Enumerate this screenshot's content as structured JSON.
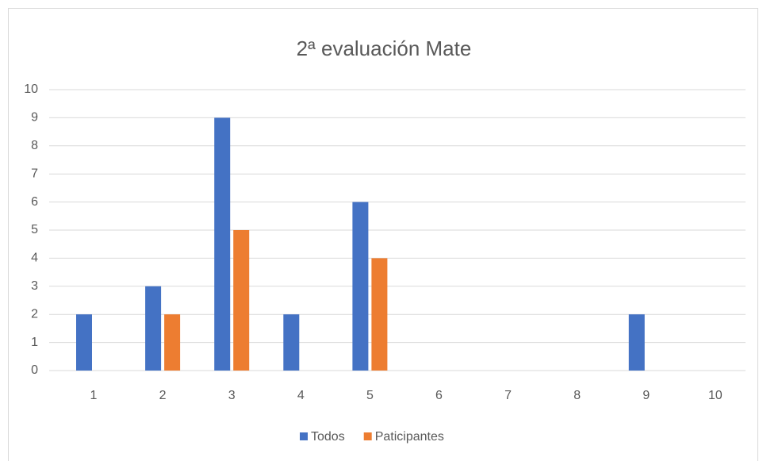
{
  "chart_data": {
    "type": "bar",
    "title": "2ª evaluación Mate",
    "categories": [
      "1",
      "2",
      "3",
      "4",
      "5",
      "6",
      "7",
      "8",
      "9",
      "10"
    ],
    "series": [
      {
        "name": "Todos",
        "color": "#4472c4",
        "values": [
          2,
          3,
          9,
          2,
          6,
          0,
          0,
          0,
          2,
          0
        ]
      },
      {
        "name": "Paticipantes",
        "color": "#ed7d31",
        "values": [
          0,
          2,
          5,
          0,
          4,
          0,
          0,
          0,
          0,
          0
        ]
      }
    ],
    "ylim": [
      0,
      10
    ],
    "yticks": [
      0,
      1,
      2,
      3,
      4,
      5,
      6,
      7,
      8,
      9,
      10
    ],
    "grid": true,
    "legend": "bottom"
  }
}
